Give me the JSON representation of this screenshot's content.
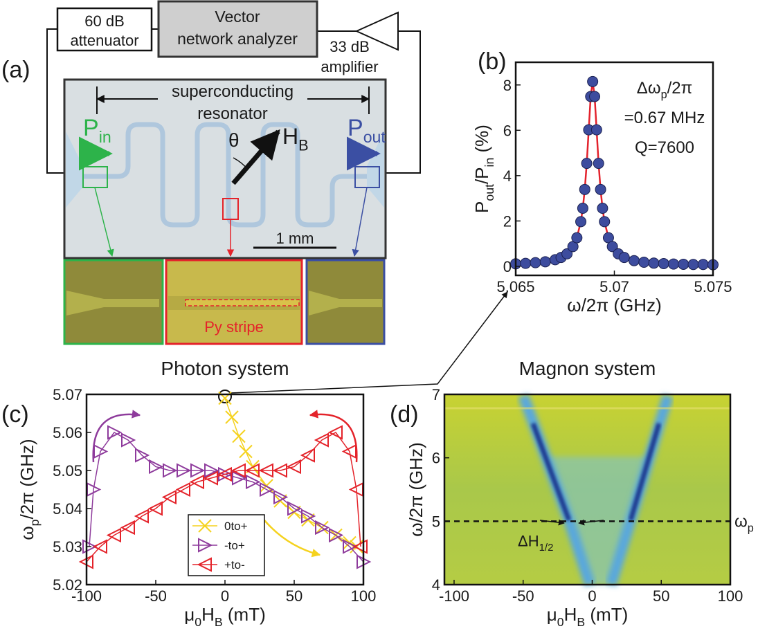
{
  "diagram": {
    "panel_label": "(a)",
    "attenuator": [
      "60 dB",
      "attenuator"
    ],
    "vna": [
      "Vector",
      "network analyzer"
    ],
    "amplifier": [
      "33 dB",
      "amplifier"
    ],
    "resonator": [
      "superconducting",
      "resonator"
    ],
    "angle": "θ",
    "field": [
      "H",
      "B"
    ],
    "p_in": [
      "P",
      "in"
    ],
    "p_out": [
      "P",
      "out"
    ],
    "scale": "1 mm",
    "stripe": "Py stripe"
  },
  "chart_data": [
    {
      "type": "scatter",
      "panel_label": "(b)",
      "xlabel": [
        "ω/2π (GHz)"
      ],
      "ylabel": [
        "P",
        "out",
        "/P",
        "in",
        " (%)"
      ],
      "annotations": [
        [
          "Δω",
          "p",
          "/2π"
        ],
        [
          "=0.67 MHz"
        ],
        [
          "Q=7600"
        ]
      ],
      "xlim": [
        5.065,
        5.075
      ],
      "ylim": [
        -0.4,
        9
      ],
      "xticks": [
        5.065,
        5.07,
        5.075
      ],
      "yticks": [
        0,
        2,
        4,
        6,
        8
      ],
      "grid": false,
      "series": [
        {
          "marker": "circle",
          "color": "#3d4c9e",
          "line_color": "#e3222c",
          "x": [
            5.065,
            5.0655,
            5.066,
            5.0665,
            5.067,
            5.0673,
            5.0676,
            5.0679,
            5.0681,
            5.0683,
            5.0684,
            5.0685,
            5.0686,
            5.0687,
            5.0688,
            5.0689,
            5.069,
            5.0691,
            5.0692,
            5.0693,
            5.0694,
            5.0695,
            5.0697,
            5.0699,
            5.0702,
            5.0705,
            5.071,
            5.0715,
            5.072,
            5.0725,
            5.073,
            5.0735,
            5.074,
            5.0745,
            5.075
          ],
          "values": [
            0.11,
            0.13,
            0.16,
            0.2,
            0.29,
            0.39,
            0.55,
            0.87,
            1.26,
            1.97,
            2.56,
            3.39,
            4.54,
            6.02,
            7.49,
            8.15,
            7.49,
            6.02,
            4.54,
            3.39,
            2.56,
            1.97,
            1.26,
            0.87,
            0.55,
            0.39,
            0.25,
            0.18,
            0.14,
            0.12,
            0.1,
            0.09,
            0.08,
            0.08,
            0.07
          ]
        }
      ]
    },
    {
      "type": "scatter",
      "panel_label": "(c)",
      "title": "Photon system",
      "xlabel": [
        "μ",
        "0",
        "H",
        "B",
        " (mT)"
      ],
      "ylabel": [
        "ω",
        "p",
        "/2π (GHz)"
      ],
      "xlim": [
        -100,
        100
      ],
      "ylim": [
        5.02,
        5.07
      ],
      "xticks": [
        -100,
        -50,
        0,
        50,
        100
      ],
      "yticks": [
        5.02,
        5.03,
        5.04,
        5.05,
        5.06,
        5.07
      ],
      "grid": false,
      "legend": "lower-center",
      "series": [
        {
          "name": "0to+",
          "marker": "x",
          "color": "#f5d21e",
          "x": [
            0,
            5,
            10,
            15,
            20,
            30,
            40,
            50,
            60,
            70,
            80,
            90,
            95
          ],
          "values": [
            5.069,
            5.064,
            5.059,
            5.055,
            5.051,
            5.046,
            5.042,
            5.039,
            5.037,
            5.035,
            5.033,
            5.031,
            5.03
          ]
        },
        {
          "name": "-to+",
          "marker": "tri-right",
          "color": "#8e3b9c",
          "x": [
            -98,
            -95,
            -90,
            -80,
            -70,
            -60,
            -50,
            -40,
            -30,
            -20,
            -10,
            0,
            10,
            20,
            30,
            40,
            50,
            60,
            70,
            80,
            90,
            100
          ],
          "values": [
            5.03,
            5.045,
            5.055,
            5.06,
            5.058,
            5.054,
            5.051,
            5.05,
            5.05,
            5.05,
            5.05,
            5.049,
            5.048,
            5.047,
            5.045,
            5.043,
            5.04,
            5.038,
            5.035,
            5.033,
            5.03,
            5.026
          ]
        },
        {
          "name": "+to-",
          "marker": "tri-left",
          "color": "#e4232a",
          "x": [
            -100,
            -90,
            -80,
            -70,
            -60,
            -50,
            -40,
            -30,
            -20,
            -10,
            0,
            10,
            20,
            30,
            40,
            50,
            60,
            70,
            80,
            90,
            95,
            98
          ],
          "values": [
            5.026,
            5.03,
            5.033,
            5.035,
            5.038,
            5.04,
            5.043,
            5.045,
            5.047,
            5.048,
            5.049,
            5.05,
            5.05,
            5.05,
            5.05,
            5.051,
            5.054,
            5.058,
            5.06,
            5.055,
            5.045,
            5.03
          ]
        }
      ]
    },
    {
      "type": "heatmap",
      "panel_label": "(d)",
      "title": "Magnon system",
      "xlabel": [
        "μ",
        "0",
        "H",
        "B",
        " (mT)"
      ],
      "ylabel": [
        "ω/2π (GHz)"
      ],
      "xlim": [
        -107,
        100
      ],
      "ylim": [
        4,
        7
      ],
      "xticks": [
        -100,
        -50,
        0,
        50,
        100
      ],
      "yticks": [
        4,
        5,
        6,
        7
      ],
      "grid": false,
      "hline": {
        "value": 5,
        "label": [
          "ω",
          "p"
        ]
      },
      "annotation": [
        "ΔH",
        "1/2"
      ]
    }
  ]
}
